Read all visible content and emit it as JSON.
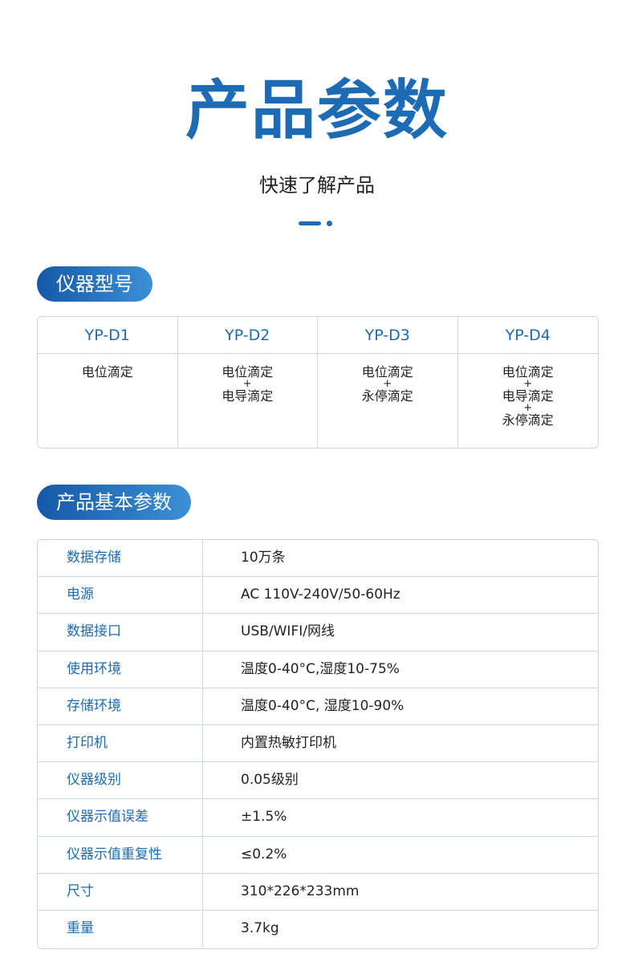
{
  "header": {
    "title": "产品参数",
    "subtitle": "快速了解产品"
  },
  "models": {
    "section_title": "仪器型号",
    "columns": [
      {
        "name": "YP-D1",
        "features": [
          "电位滴定"
        ]
      },
      {
        "name": "YP-D2",
        "features": [
          "电位滴定",
          "电导滴定"
        ]
      },
      {
        "name": "YP-D3",
        "features": [
          "电位滴定",
          "永停滴定"
        ]
      },
      {
        "name": "YP-D4",
        "features": [
          "电位滴定",
          "电导滴定",
          "永停滴定"
        ]
      }
    ],
    "joiner": "+"
  },
  "params": {
    "section_title": "产品基本参数",
    "rows": [
      {
        "label": "数据存储",
        "value": "10万条"
      },
      {
        "label": "电源",
        "value": "AC 110V-240V/50-60Hz"
      },
      {
        "label": "数据接口",
        "value": "USB/WIFI/网线"
      },
      {
        "label": "使用环境",
        "value": "温度0-40°C,湿度10-75%"
      },
      {
        "label": "存储环境",
        "value": "温度0-40°C, 湿度10-90%"
      },
      {
        "label": "打印机",
        "value": "内置热敏打印机"
      },
      {
        "label": "仪器级别",
        "value": "0.05级别"
      },
      {
        "label": "仪器示值误差",
        "value": "±1.5%"
      },
      {
        "label": "仪器示值重复性",
        "value": "≤0.2%"
      },
      {
        "label": "尺寸",
        "value": "310*226*233mm"
      },
      {
        "label": "重量",
        "value": "3.7kg"
      }
    ]
  },
  "colors": {
    "accent": "#1c6bb4",
    "border": "#c9d9e6"
  }
}
